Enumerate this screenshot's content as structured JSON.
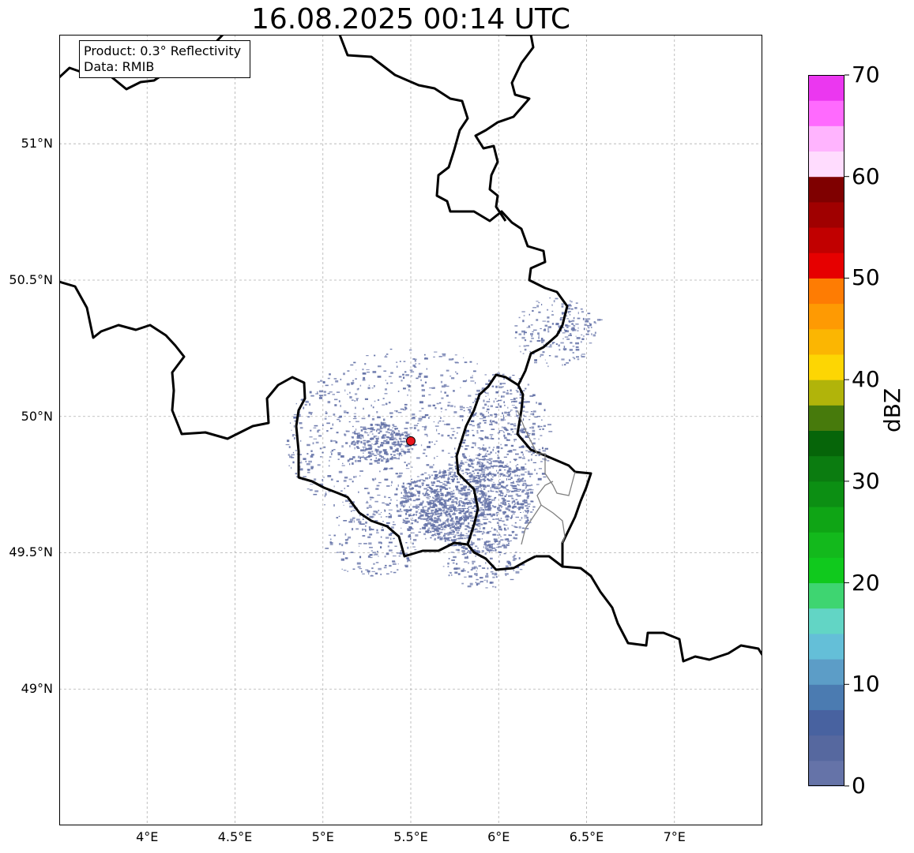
{
  "title": "16.08.2025 00:14 UTC",
  "info_box": {
    "product": "Product: 0.3° Reflectivity",
    "data": "Data: RMIB"
  },
  "map": {
    "lon_range": [
      3.5,
      7.5
    ],
    "lat_range": [
      48.5,
      51.4
    ],
    "lon_ticks": [
      {
        "value": 4.0,
        "label": "4°E"
      },
      {
        "value": 4.5,
        "label": "4.5°E"
      },
      {
        "value": 5.0,
        "label": "5°E"
      },
      {
        "value": 5.5,
        "label": "5.5°E"
      },
      {
        "value": 6.0,
        "label": "6°E"
      },
      {
        "value": 6.5,
        "label": "6.5°E"
      },
      {
        "value": 7.0,
        "label": "7°E"
      }
    ],
    "lat_ticks": [
      {
        "value": 51.0,
        "label": "51°N"
      },
      {
        "value": 50.5,
        "label": "50.5°N"
      },
      {
        "value": 50.0,
        "label": "50°N"
      },
      {
        "value": 49.5,
        "label": "49.5°N"
      },
      {
        "value": 49.0,
        "label": "49°N"
      }
    ],
    "grid": "dashed",
    "radar_site": {
      "lon": 5.5,
      "lat": 49.91,
      "color": "#e8141c"
    },
    "echo_color": "#6573a8"
  },
  "colorbar": {
    "label": "dBZ",
    "range": [
      0,
      70
    ],
    "tick_labels": [
      "0",
      "10",
      "20",
      "30",
      "40",
      "50",
      "60",
      "70"
    ],
    "colors": [
      "#6573a8",
      "#56689f",
      "#4862a0",
      "#4b7bb1",
      "#5c9dc7",
      "#64bfd8",
      "#62d5c5",
      "#3ed571",
      "#10c91d",
      "#13b91c",
      "#0fa515",
      "#0c8f13",
      "#0b7c10",
      "#066509",
      "#477a0c",
      "#b1b40a",
      "#fdd603",
      "#fbb602",
      "#fe9a03",
      "#fe7c03",
      "#e60000",
      "#c10000",
      "#a00000",
      "#7f0000",
      "#ffdcfe",
      "#ffb4fe",
      "#ff6afe",
      "#eb37f0"
    ]
  }
}
